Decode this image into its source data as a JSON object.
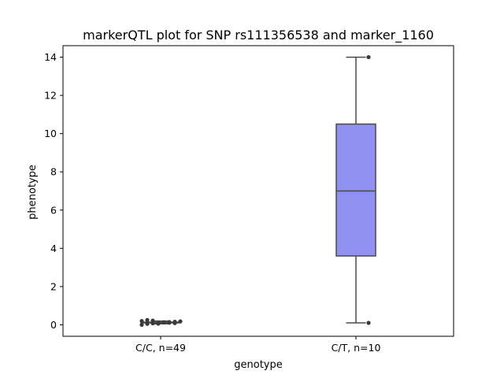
{
  "chart_data": {
    "type": "box",
    "title": "markerQTL plot for SNP rs111356538 and marker_1160",
    "xlabel": "genotype",
    "ylabel": "phenotype",
    "ylim": [
      -0.6,
      14.6
    ],
    "yticks": [
      0,
      2,
      4,
      6,
      8,
      10,
      12,
      14
    ],
    "categories": [
      "C/C, n=49",
      "C/T, n=10"
    ],
    "boxes": [
      {
        "category": "C/C, n=49",
        "whisker_low": 0.05,
        "q1": 0.1,
        "median": 0.12,
        "q3": 0.14,
        "whisker_high": 0.2,
        "fill": "#444444",
        "outliers": [
          0.0,
          0.05,
          0.08,
          0.1,
          0.12,
          0.14,
          0.16,
          0.18,
          0.2,
          0.25,
          0.22,
          0.06,
          0.13,
          0.11,
          0.09
        ]
      },
      {
        "category": "C/T, n=10",
        "whisker_low": 0.1,
        "q1": 3.6,
        "median": 7.0,
        "q3": 10.5,
        "whisker_high": 14.0,
        "fill": "#9090f0",
        "outliers": [
          0.1,
          14.0
        ]
      }
    ],
    "grid": false,
    "legend": "none"
  }
}
